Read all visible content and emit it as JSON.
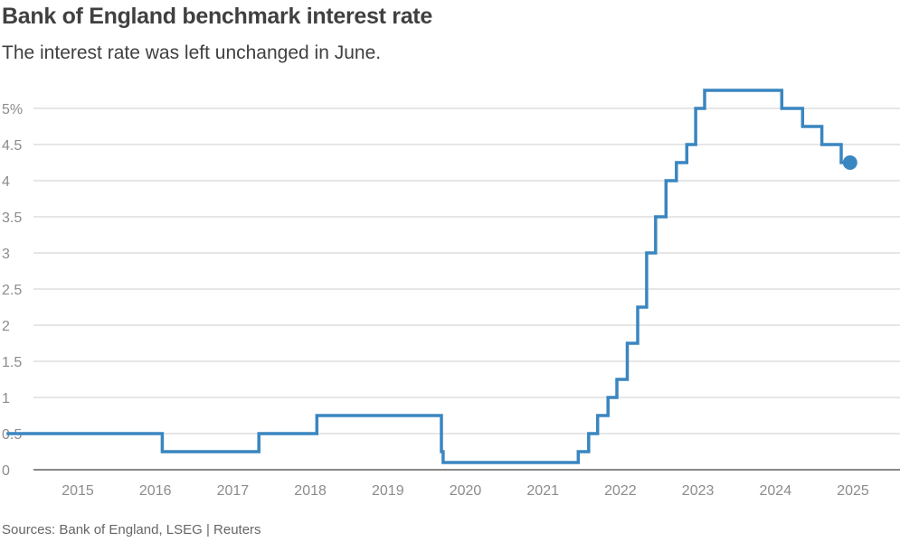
{
  "header": {
    "title": "Bank of England benchmark interest rate",
    "subtitle": "The interest rate was left unchanged in June."
  },
  "footer": {
    "source": "Sources: Bank of England, LSEG | Reuters"
  },
  "colors": {
    "series": "#3a86c0",
    "grid": "#cccccc",
    "axis": "#404040",
    "text": "#404040",
    "tick_text": "#8c8c8c"
  },
  "chart_data": {
    "type": "line",
    "title": "Bank of England benchmark interest rate",
    "subtitle": "The interest rate was left unchanged in June.",
    "xlabel": "",
    "ylabel": "",
    "x_ticks": [
      "2015",
      "2016",
      "2017",
      "2018",
      "2019",
      "2020",
      "2021",
      "2022",
      "2023",
      "2024",
      "2025"
    ],
    "y_ticks": [
      "0",
      "0.5",
      "1",
      "1.5",
      "2",
      "2.5",
      "3",
      "3.5",
      "4",
      "4.5",
      "5%"
    ],
    "ylim": [
      0,
      5.5
    ],
    "xlim": [
      "2014-08-01",
      "2025-08-01"
    ],
    "grid": "horizontal",
    "step": "after",
    "end_marker": true,
    "series": [
      {
        "name": "",
        "points": [
          {
            "date": "2014-08-01",
            "rate": 0.5
          },
          {
            "date": "2016-08-04",
            "rate": 0.25
          },
          {
            "date": "2017-11-02",
            "rate": 0.5
          },
          {
            "date": "2018-08-02",
            "rate": 0.75
          },
          {
            "date": "2020-03-11",
            "rate": 0.25
          },
          {
            "date": "2020-03-19",
            "rate": 0.1
          },
          {
            "date": "2021-12-16",
            "rate": 0.25
          },
          {
            "date": "2022-02-03",
            "rate": 0.5
          },
          {
            "date": "2022-03-17",
            "rate": 0.75
          },
          {
            "date": "2022-05-05",
            "rate": 1.0
          },
          {
            "date": "2022-06-16",
            "rate": 1.25
          },
          {
            "date": "2022-08-04",
            "rate": 1.75
          },
          {
            "date": "2022-09-22",
            "rate": 2.25
          },
          {
            "date": "2022-11-03",
            "rate": 3.0
          },
          {
            "date": "2022-12-15",
            "rate": 3.5
          },
          {
            "date": "2023-02-02",
            "rate": 4.0
          },
          {
            "date": "2023-03-23",
            "rate": 4.25
          },
          {
            "date": "2023-05-11",
            "rate": 4.5
          },
          {
            "date": "2023-06-22",
            "rate": 5.0
          },
          {
            "date": "2023-08-03",
            "rate": 5.25
          },
          {
            "date": "2024-08-01",
            "rate": 5.0
          },
          {
            "date": "2024-11-07",
            "rate": 4.75
          },
          {
            "date": "2025-02-06",
            "rate": 4.5
          },
          {
            "date": "2025-05-08",
            "rate": 4.25
          },
          {
            "date": "2025-06-19",
            "rate": 4.25
          }
        ]
      }
    ]
  }
}
